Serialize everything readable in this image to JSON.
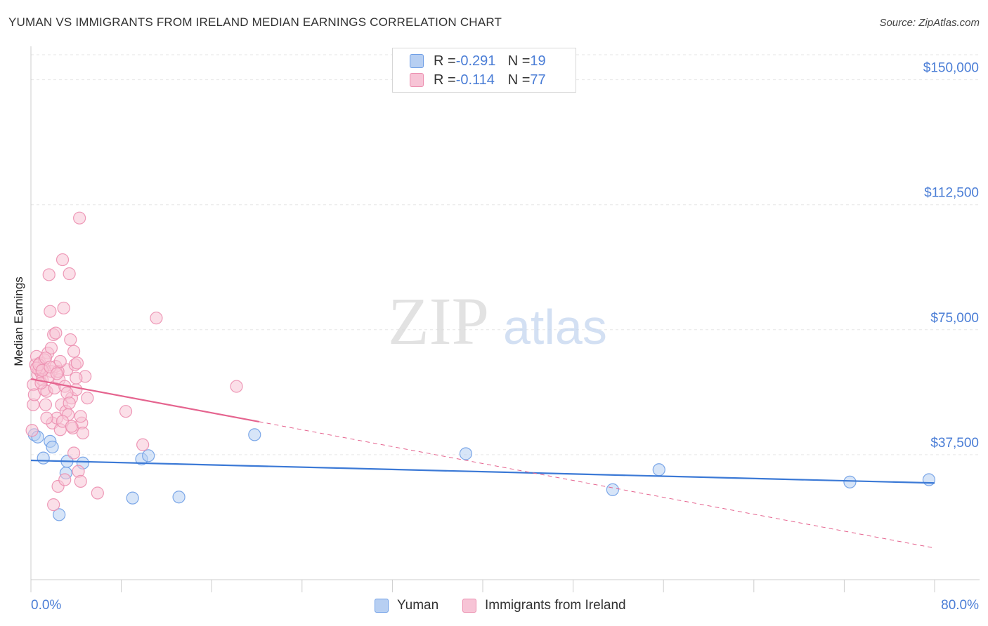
{
  "chart_data": {
    "type": "scatter",
    "title": "YUMAN VS IMMIGRANTS FROM IRELAND MEDIAN EARNINGS CORRELATION CHART",
    "source": "Source: ZipAtlas.com",
    "xlabel": "",
    "ylabel": "Median Earnings",
    "xlim": [
      0,
      80
    ],
    "ylim": [
      0,
      157500
    ],
    "y_ticks": [
      {
        "value": 37500,
        "label": "$37,500"
      },
      {
        "value": 75000,
        "label": "$75,000"
      },
      {
        "value": 112500,
        "label": "$112,500"
      },
      {
        "value": 150000,
        "label": "$150,000"
      }
    ],
    "x_tick_values": [
      0,
      8,
      16,
      24,
      32,
      40,
      48,
      56,
      64,
      72,
      80
    ],
    "x_min_label": "0.0%",
    "x_max_label": "80.0%",
    "grid": true,
    "legend_position": "top-center",
    "watermark": {
      "zip": "ZIP",
      "atlas": "atlas"
    },
    "series": [
      {
        "name": "Yuman",
        "color": "#6f9fe6",
        "fill": "#b7cff2",
        "line_color": "#3b79d6",
        "r_label": "R = ",
        "r_value": "-0.291",
        "n_label": "N = ",
        "n_value": "19",
        "trend": {
          "x0": 0,
          "y0": 35800,
          "x1": 80,
          "y1": 29000,
          "solid_until": 80
        },
        "points": [
          {
            "x": 0.3,
            "y": 43500
          },
          {
            "x": 0.6,
            "y": 42800
          },
          {
            "x": 1.1,
            "y": 36500
          },
          {
            "x": 1.7,
            "y": 41500
          },
          {
            "x": 1.9,
            "y": 39800
          },
          {
            "x": 2.5,
            "y": 19500
          },
          {
            "x": 3.1,
            "y": 32000
          },
          {
            "x": 3.2,
            "y": 35500
          },
          {
            "x": 4.6,
            "y": 35000
          },
          {
            "x": 9.0,
            "y": 24500
          },
          {
            "x": 9.8,
            "y": 36200
          },
          {
            "x": 10.4,
            "y": 37200
          },
          {
            "x": 13.1,
            "y": 24800
          },
          {
            "x": 19.8,
            "y": 43500
          },
          {
            "x": 38.5,
            "y": 37800
          },
          {
            "x": 51.5,
            "y": 27000
          },
          {
            "x": 55.6,
            "y": 33000
          },
          {
            "x": 72.5,
            "y": 29300
          },
          {
            "x": 79.5,
            "y": 30000
          }
        ]
      },
      {
        "name": "Immigrants from Ireland",
        "color": "#ec8fb0",
        "fill": "#f7c4d6",
        "line_color": "#e5648f",
        "r_label": "R = ",
        "r_value": "-0.114",
        "n_label": "N = ",
        "n_value": "77",
        "trend": {
          "x0": 0,
          "y0": 60200,
          "x1": 80,
          "y1": 9500,
          "solid_until": 20.2
        },
        "points": [
          {
            "x": 0.1,
            "y": 44800
          },
          {
            "x": 0.2,
            "y": 52500
          },
          {
            "x": 0.2,
            "y": 58500
          },
          {
            "x": 0.3,
            "y": 55500
          },
          {
            "x": 0.4,
            "y": 64500
          },
          {
            "x": 0.5,
            "y": 67000
          },
          {
            "x": 0.6,
            "y": 61500
          },
          {
            "x": 0.7,
            "y": 63000
          },
          {
            "x": 0.8,
            "y": 65000
          },
          {
            "x": 0.9,
            "y": 62000
          },
          {
            "x": 1.0,
            "y": 60000
          },
          {
            "x": 1.1,
            "y": 63500
          },
          {
            "x": 1.2,
            "y": 57000
          },
          {
            "x": 1.3,
            "y": 52500
          },
          {
            "x": 1.4,
            "y": 56500
          },
          {
            "x": 1.5,
            "y": 68000
          },
          {
            "x": 1.6,
            "y": 91500
          },
          {
            "x": 1.7,
            "y": 80500
          },
          {
            "x": 1.8,
            "y": 62500
          },
          {
            "x": 1.9,
            "y": 47000
          },
          {
            "x": 2.0,
            "y": 73500
          },
          {
            "x": 2.1,
            "y": 57500
          },
          {
            "x": 2.2,
            "y": 64000
          },
          {
            "x": 2.3,
            "y": 48500
          },
          {
            "x": 2.4,
            "y": 28000
          },
          {
            "x": 2.5,
            "y": 60000
          },
          {
            "x": 2.6,
            "y": 45000
          },
          {
            "x": 2.7,
            "y": 52500
          },
          {
            "x": 2.8,
            "y": 96000
          },
          {
            "x": 2.9,
            "y": 81500
          },
          {
            "x": 3.0,
            "y": 58000
          },
          {
            "x": 3.1,
            "y": 50500
          },
          {
            "x": 3.2,
            "y": 63000
          },
          {
            "x": 3.3,
            "y": 49500
          },
          {
            "x": 3.4,
            "y": 91800
          },
          {
            "x": 3.5,
            "y": 72000
          },
          {
            "x": 3.6,
            "y": 54500
          },
          {
            "x": 3.7,
            "y": 45500
          },
          {
            "x": 3.8,
            "y": 68500
          },
          {
            "x": 3.9,
            "y": 64500
          },
          {
            "x": 4.0,
            "y": 57000
          },
          {
            "x": 4.1,
            "y": 65000
          },
          {
            "x": 4.2,
            "y": 32500
          },
          {
            "x": 4.3,
            "y": 108500
          },
          {
            "x": 4.4,
            "y": 29500
          },
          {
            "x": 4.5,
            "y": 47000
          },
          {
            "x": 4.6,
            "y": 44000
          },
          {
            "x": 4.8,
            "y": 61000
          },
          {
            "x": 5.0,
            "y": 54500
          },
          {
            "x": 5.9,
            "y": 26000
          },
          {
            "x": 8.4,
            "y": 50500
          },
          {
            "x": 9.9,
            "y": 40500
          },
          {
            "x": 11.1,
            "y": 78500
          },
          {
            "x": 18.2,
            "y": 58000
          },
          {
            "x": 0.9,
            "y": 59000
          },
          {
            "x": 1.2,
            "y": 66000
          },
          {
            "x": 1.4,
            "y": 48500
          },
          {
            "x": 1.6,
            "y": 61000
          },
          {
            "x": 1.8,
            "y": 69500
          },
          {
            "x": 2.0,
            "y": 22500
          },
          {
            "x": 2.2,
            "y": 74000
          },
          {
            "x": 2.4,
            "y": 62500
          },
          {
            "x": 2.6,
            "y": 65500
          },
          {
            "x": 2.8,
            "y": 47500
          },
          {
            "x": 3.0,
            "y": 30000
          },
          {
            "x": 3.2,
            "y": 56000
          },
          {
            "x": 3.4,
            "y": 53000
          },
          {
            "x": 3.6,
            "y": 46000
          },
          {
            "x": 3.8,
            "y": 38000
          },
          {
            "x": 4.0,
            "y": 60500
          },
          {
            "x": 4.4,
            "y": 49000
          },
          {
            "x": 0.5,
            "y": 63500
          },
          {
            "x": 0.7,
            "y": 64500
          },
          {
            "x": 1.0,
            "y": 62800
          },
          {
            "x": 1.3,
            "y": 66500
          },
          {
            "x": 1.7,
            "y": 63800
          },
          {
            "x": 2.3,
            "y": 61800
          }
        ]
      }
    ]
  }
}
